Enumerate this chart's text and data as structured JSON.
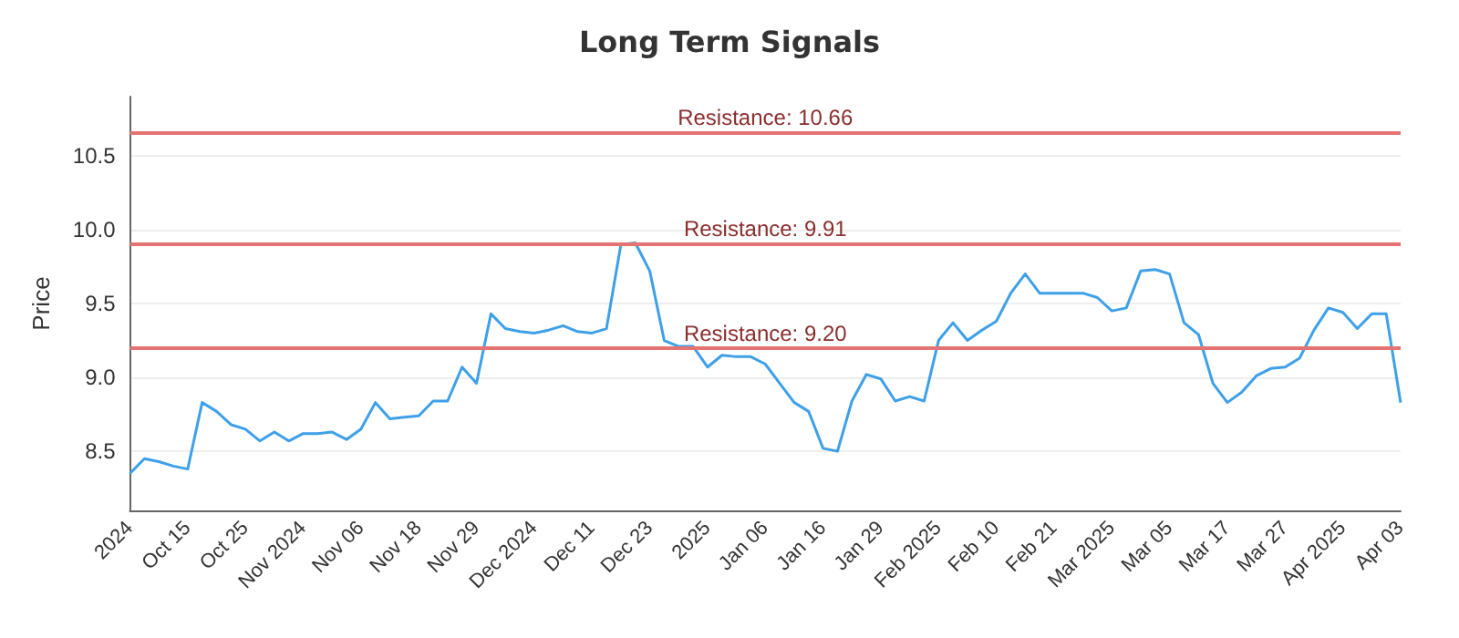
{
  "chart_data": {
    "type": "line",
    "title": "Long Term Signals",
    "ylabel": "Price",
    "categories": [
      "2024",
      null,
      null,
      null,
      "Oct 15",
      null,
      null,
      null,
      "Oct 25",
      null,
      null,
      null,
      "Nov 2024",
      null,
      null,
      null,
      "Nov 06",
      null,
      null,
      null,
      "Nov 18",
      null,
      null,
      null,
      "Nov 29",
      null,
      null,
      null,
      "Dec 2024",
      null,
      null,
      null,
      "Dec 11",
      null,
      null,
      null,
      "Dec 23",
      null,
      null,
      null,
      "2025",
      null,
      null,
      null,
      "Jan 06",
      null,
      null,
      null,
      "Jan 16",
      null,
      null,
      null,
      "Jan 29",
      null,
      null,
      null,
      "Feb 2025",
      null,
      null,
      null,
      "Feb 10",
      null,
      null,
      null,
      "Feb 21",
      null,
      null,
      null,
      "Mar 2025",
      null,
      null,
      null,
      "Mar 05",
      null,
      null,
      null,
      "Mar 17",
      null,
      null,
      null,
      "Mar 27",
      null,
      null,
      null,
      "Apr 2025",
      null,
      null,
      null,
      "Apr 03"
    ],
    "series": [
      {
        "color": "#3ea0e8",
        "values": [
          8.35,
          8.45,
          8.43,
          8.4,
          8.38,
          8.83,
          8.77,
          8.68,
          8.65,
          8.57,
          8.63,
          8.57,
          8.62,
          8.62,
          8.63,
          8.58,
          8.65,
          8.83,
          8.72,
          8.73,
          8.74,
          8.84,
          8.84,
          9.07,
          8.96,
          9.43,
          9.33,
          9.31,
          9.3,
          9.32,
          9.35,
          9.31,
          9.3,
          9.33,
          9.9,
          9.91,
          9.72,
          9.25,
          9.21,
          9.21,
          9.07,
          9.15,
          9.14,
          9.14,
          9.09,
          8.96,
          8.83,
          8.77,
          8.52,
          8.5,
          8.84,
          9.02,
          8.99,
          8.84,
          8.87,
          8.84,
          9.25,
          9.37,
          9.25,
          9.32,
          9.38,
          9.57,
          9.7,
          9.57,
          9.57,
          9.57,
          9.57,
          9.54,
          9.45,
          9.47,
          9.72,
          9.73,
          9.7,
          9.37,
          9.29,
          8.96,
          8.83,
          8.9,
          9.01,
          9.06,
          9.07,
          9.13,
          9.32,
          9.47,
          9.44,
          9.33,
          9.43,
          9.43,
          8.83
        ]
      }
    ],
    "ylim": [
      8.1,
      10.9
    ],
    "yticks": [
      8.5,
      {
        "value": 9,
        "label": "9.0"
      },
      9.5,
      {
        "value": 10,
        "label": "10.0"
      },
      10.5
    ],
    "ref_lines": [
      {
        "axis": "y",
        "value": 10.66,
        "label": "Resistance: 10.66",
        "color": "#e57373"
      },
      {
        "axis": "y",
        "value": 9.91,
        "label": "Resistance: 9.91",
        "color": "#e57373"
      },
      {
        "axis": "y",
        "value": 9.2,
        "label": "Resistance: 9.20",
        "color": "#e57373"
      }
    ],
    "grid": "y",
    "marker": "none",
    "line_style": "solid"
  }
}
